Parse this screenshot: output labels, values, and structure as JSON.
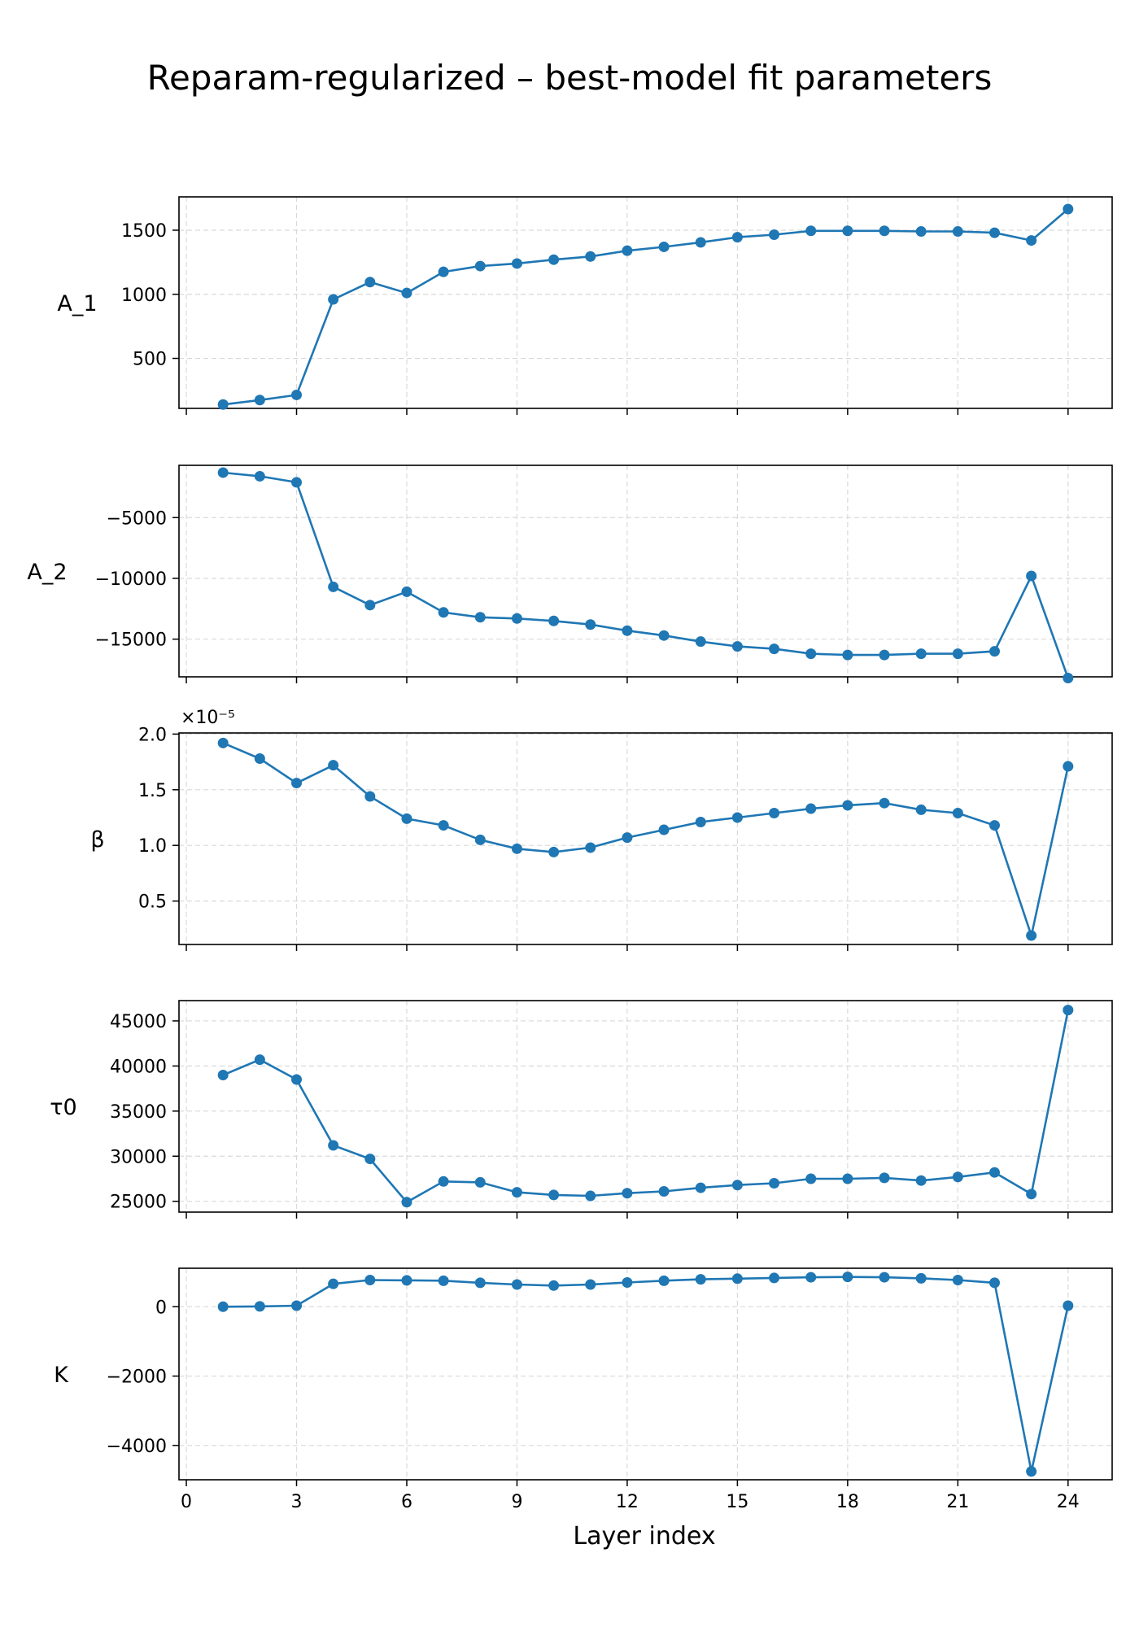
{
  "title": "Reparam-regularized – best-model fit parameters",
  "xlabel": "Layer index",
  "colors": {
    "series": "#1f77b4",
    "grid": "#d9d9d9",
    "axis": "#000000"
  },
  "chart_data": [
    {
      "type": "line",
      "ylabel": "A_1",
      "x": [
        1,
        2,
        3,
        4,
        5,
        6,
        7,
        8,
        9,
        10,
        11,
        12,
        13,
        14,
        15,
        16,
        17,
        18,
        19,
        20,
        21,
        22,
        23,
        24
      ],
      "values": [
        140,
        175,
        215,
        960,
        1095,
        1010,
        1175,
        1220,
        1240,
        1270,
        1295,
        1340,
        1370,
        1405,
        1445,
        1465,
        1495,
        1495,
        1495,
        1490,
        1490,
        1480,
        1420,
        1665
      ],
      "xticks": [
        0,
        3,
        6,
        9,
        12,
        15,
        18,
        21,
        24
      ],
      "yticks": [
        500,
        1000,
        1500
      ],
      "ytick_labels": [
        "500",
        "1000",
        "1500"
      ],
      "ylim": [
        110,
        1760
      ],
      "grid": true
    },
    {
      "type": "line",
      "ylabel": "A_2",
      "x": [
        1,
        2,
        3,
        4,
        5,
        6,
        7,
        8,
        9,
        10,
        11,
        12,
        13,
        14,
        15,
        16,
        17,
        18,
        19,
        20,
        21,
        22,
        23,
        24
      ],
      "values": [
        -1300,
        -1600,
        -2100,
        -10700,
        -12200,
        -11100,
        -12800,
        -13200,
        -13300,
        -13500,
        -13800,
        -14300,
        -14700,
        -15200,
        -15600,
        -15800,
        -16200,
        -16300,
        -16300,
        -16200,
        -16200,
        -16000,
        -9800,
        -18200
      ],
      "xticks": [
        0,
        3,
        6,
        9,
        12,
        15,
        18,
        21,
        24
      ],
      "yticks": [
        -5000,
        -10000,
        -15000
      ],
      "ytick_labels": [
        "−5000",
        "−10000",
        "−15000"
      ],
      "ylim": [
        -18100,
        -700
      ],
      "grid": true
    },
    {
      "type": "line",
      "ylabel": "β",
      "offset_label": "×10⁻⁵",
      "x": [
        1,
        2,
        3,
        4,
        5,
        6,
        7,
        8,
        9,
        10,
        11,
        12,
        13,
        14,
        15,
        16,
        17,
        18,
        19,
        20,
        21,
        22,
        23,
        24
      ],
      "values": [
        1.92,
        1.78,
        1.56,
        1.72,
        1.44,
        1.24,
        1.18,
        1.05,
        0.97,
        0.94,
        0.98,
        1.07,
        1.14,
        1.21,
        1.25,
        1.29,
        1.33,
        1.36,
        1.38,
        1.32,
        1.29,
        1.18,
        0.19,
        1.71
      ],
      "xticks": [
        0,
        3,
        6,
        9,
        12,
        15,
        18,
        21,
        24
      ],
      "yticks": [
        0.5,
        1.0,
        1.5,
        2.0
      ],
      "ytick_labels": [
        "0.5",
        "1.0",
        "1.5",
        "2.0"
      ],
      "ylim": [
        0.11,
        2.01
      ],
      "grid": true
    },
    {
      "type": "line",
      "ylabel": "τ0",
      "x": [
        1,
        2,
        3,
        4,
        5,
        6,
        7,
        8,
        9,
        10,
        11,
        12,
        13,
        14,
        15,
        16,
        17,
        18,
        19,
        20,
        21,
        22,
        23,
        24
      ],
      "values": [
        39000,
        40700,
        38500,
        31200,
        29700,
        24900,
        27200,
        27100,
        26000,
        25700,
        25600,
        25900,
        26100,
        26500,
        26800,
        27000,
        27500,
        27500,
        27600,
        27300,
        27700,
        28200,
        25800,
        46200
      ],
      "xticks": [
        0,
        3,
        6,
        9,
        12,
        15,
        18,
        21,
        24
      ],
      "yticks": [
        25000,
        30000,
        35000,
        40000,
        45000
      ],
      "ytick_labels": [
        "25000",
        "30000",
        "35000",
        "40000",
        "45000"
      ],
      "ylim": [
        23800,
        47250
      ],
      "grid": true
    },
    {
      "type": "line",
      "ylabel": "K",
      "x": [
        1,
        2,
        3,
        4,
        5,
        6,
        7,
        8,
        9,
        10,
        11,
        12,
        13,
        14,
        15,
        16,
        17,
        18,
        19,
        20,
        21,
        22,
        23,
        24
      ],
      "values": [
        0,
        10,
        30,
        660,
        770,
        760,
        750,
        690,
        640,
        610,
        640,
        700,
        750,
        790,
        810,
        830,
        850,
        860,
        850,
        820,
        770,
        690,
        -4750,
        30
      ],
      "xticks": [
        0,
        3,
        6,
        9,
        12,
        15,
        18,
        21,
        24
      ],
      "yticks": [
        0,
        -2000,
        -4000
      ],
      "ytick_labels": [
        "0",
        "−2000",
        "−4000"
      ],
      "ylim": [
        -4990,
        1110
      ],
      "grid": true
    }
  ]
}
